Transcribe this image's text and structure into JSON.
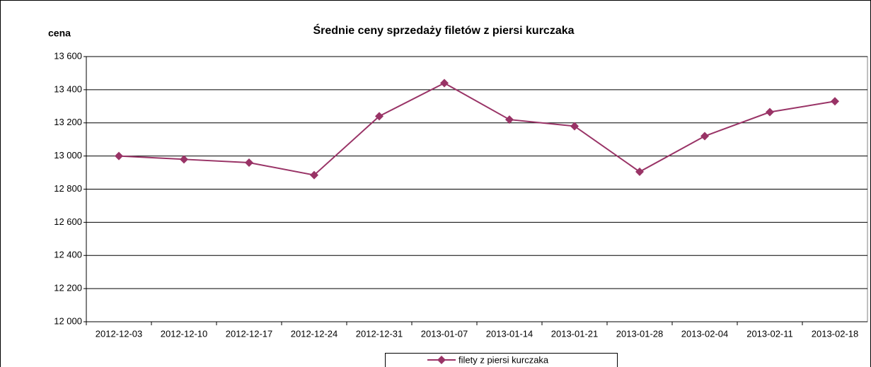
{
  "chart_data": {
    "type": "line",
    "title": "Średnie ceny sprzedaży filetów z piersi kurczaka",
    "y_label": "cena",
    "categories": [
      "2012-12-03",
      "2012-12-10",
      "2012-12-17",
      "2012-12-24",
      "2012-12-31",
      "2013-01-07",
      "2013-01-14",
      "2013-01-21",
      "2013-01-28",
      "2013-02-04",
      "2013-02-11",
      "2013-02-18"
    ],
    "series": [
      {
        "name": "filety z piersi kurczaka",
        "color": "#993366",
        "values": [
          13000,
          12980,
          12960,
          12885,
          13240,
          13440,
          13220,
          13180,
          12905,
          13120,
          13265,
          13330
        ]
      }
    ],
    "ylim": [
      12000,
      13600
    ],
    "yticks": [
      {
        "value": 12000,
        "label": "12 000"
      },
      {
        "value": 12200,
        "label": "12 200"
      },
      {
        "value": 12400,
        "label": "12 400"
      },
      {
        "value": 12600,
        "label": "12 600"
      },
      {
        "value": 12800,
        "label": "12 800"
      },
      {
        "value": 13000,
        "label": "13 000"
      },
      {
        "value": 13200,
        "label": "13 200"
      },
      {
        "value": 13400,
        "label": "13 400"
      },
      {
        "value": 13600,
        "label": "13 600"
      }
    ],
    "grid": true,
    "legend": "bottom"
  }
}
